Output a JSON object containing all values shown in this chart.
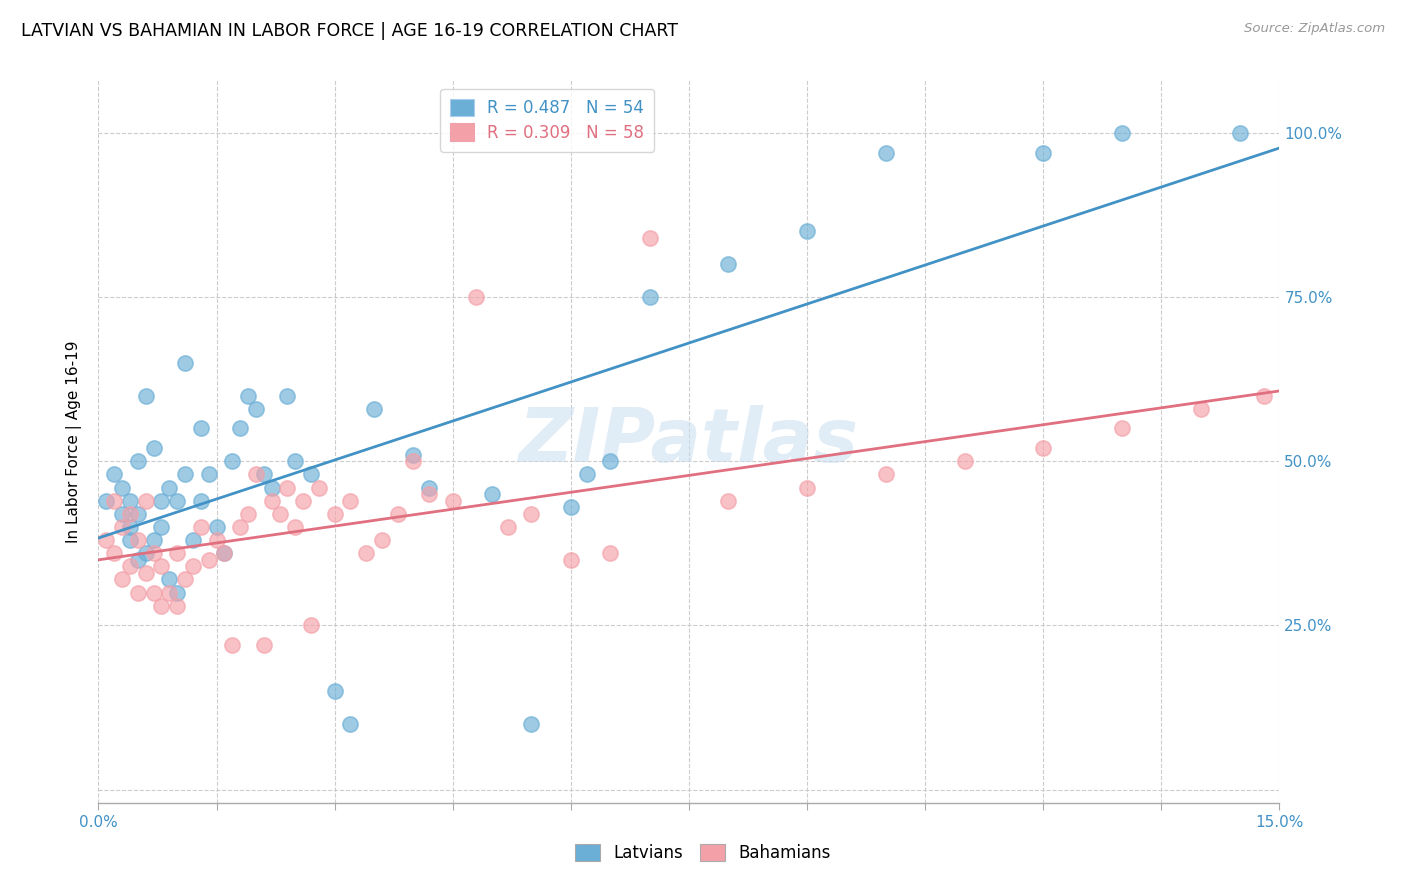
{
  "title": "LATVIAN VS BAHAMIAN IN LABOR FORCE | AGE 16-19 CORRELATION CHART",
  "source": "Source: ZipAtlas.com",
  "ylabel": "In Labor Force | Age 16-19",
  "xlim": [
    0.0,
    0.15
  ],
  "ylim": [
    -0.02,
    1.08
  ],
  "ytick_values": [
    0.0,
    0.25,
    0.5,
    0.75,
    1.0
  ],
  "ytick_labels_right": [
    "",
    "25.0%",
    "50.0%",
    "75.0%",
    "100.0%"
  ],
  "xtick_values": [
    0.0,
    0.015,
    0.03,
    0.045,
    0.06,
    0.075,
    0.09,
    0.105,
    0.12,
    0.135,
    0.15
  ],
  "latvian_color": "#6baed6",
  "bahamian_color": "#f4a0a8",
  "latvian_line_color": "#4292c6",
  "bahamian_line_color": "#e07080",
  "legend_text_latvian": "R = 0.487   N = 54",
  "legend_text_bahamian": "R = 0.309   N = 58",
  "watermark": "ZIPatlas",
  "latvian_x": [
    0.001,
    0.002,
    0.003,
    0.003,
    0.004,
    0.004,
    0.004,
    0.005,
    0.005,
    0.005,
    0.006,
    0.006,
    0.007,
    0.007,
    0.008,
    0.008,
    0.009,
    0.009,
    0.01,
    0.01,
    0.011,
    0.011,
    0.012,
    0.013,
    0.013,
    0.014,
    0.015,
    0.016,
    0.017,
    0.018,
    0.019,
    0.02,
    0.021,
    0.022,
    0.024,
    0.025,
    0.027,
    0.03,
    0.032,
    0.035,
    0.04,
    0.042,
    0.05,
    0.055,
    0.06,
    0.062,
    0.065,
    0.07,
    0.08,
    0.09,
    0.1,
    0.12,
    0.13,
    0.145
  ],
  "latvian_y": [
    0.44,
    0.48,
    0.42,
    0.46,
    0.38,
    0.4,
    0.44,
    0.35,
    0.42,
    0.5,
    0.36,
    0.6,
    0.38,
    0.52,
    0.4,
    0.44,
    0.32,
    0.46,
    0.3,
    0.44,
    0.48,
    0.65,
    0.38,
    0.44,
    0.55,
    0.48,
    0.4,
    0.36,
    0.5,
    0.55,
    0.6,
    0.58,
    0.48,
    0.46,
    0.6,
    0.5,
    0.48,
    0.15,
    0.1,
    0.58,
    0.51,
    0.46,
    0.45,
    0.1,
    0.43,
    0.48,
    0.5,
    0.75,
    0.8,
    0.85,
    0.97,
    0.97,
    1.0,
    1.0
  ],
  "bahamian_x": [
    0.001,
    0.002,
    0.002,
    0.003,
    0.003,
    0.004,
    0.004,
    0.005,
    0.005,
    0.006,
    0.006,
    0.007,
    0.007,
    0.008,
    0.008,
    0.009,
    0.01,
    0.01,
    0.011,
    0.012,
    0.013,
    0.014,
    0.015,
    0.016,
    0.017,
    0.018,
    0.019,
    0.02,
    0.021,
    0.022,
    0.023,
    0.024,
    0.025,
    0.026,
    0.027,
    0.028,
    0.03,
    0.032,
    0.034,
    0.036,
    0.038,
    0.04,
    0.042,
    0.045,
    0.048,
    0.052,
    0.055,
    0.06,
    0.065,
    0.07,
    0.08,
    0.09,
    0.1,
    0.11,
    0.12,
    0.13,
    0.14,
    0.148
  ],
  "bahamian_y": [
    0.38,
    0.36,
    0.44,
    0.32,
    0.4,
    0.34,
    0.42,
    0.3,
    0.38,
    0.33,
    0.44,
    0.3,
    0.36,
    0.28,
    0.34,
    0.3,
    0.28,
    0.36,
    0.32,
    0.34,
    0.4,
    0.35,
    0.38,
    0.36,
    0.22,
    0.4,
    0.42,
    0.48,
    0.22,
    0.44,
    0.42,
    0.46,
    0.4,
    0.44,
    0.25,
    0.46,
    0.42,
    0.44,
    0.36,
    0.38,
    0.42,
    0.5,
    0.45,
    0.44,
    0.75,
    0.4,
    0.42,
    0.35,
    0.36,
    0.84,
    0.44,
    0.46,
    0.48,
    0.5,
    0.52,
    0.55,
    0.58,
    0.6
  ]
}
